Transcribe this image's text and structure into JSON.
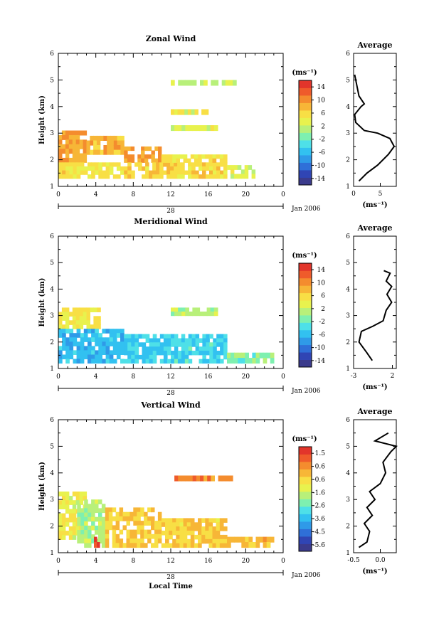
{
  "palette": [
    "#3b3b8c",
    "#3045b4",
    "#2f6fd8",
    "#2f9ae8",
    "#32c1f0",
    "#4ee0e8",
    "#7ef0b0",
    "#b8f07a",
    "#e8f24e",
    "#f8df45",
    "#f7b637",
    "#f48c2e",
    "#ef5b2b",
    "#e2352b"
  ],
  "date_label": "Jan 2006",
  "day_label": "28",
  "xlabel": "Local Time",
  "ylabel": "Height (km)",
  "unit_label": "(ms⁻¹)",
  "chart_data": [
    {
      "id": "zonal",
      "type": "heatmap",
      "title": "Zonal Wind",
      "xlabel": "",
      "ylabel": "Height (km)",
      "x_ticks": [
        "0",
        "4",
        "8",
        "12",
        "16",
        "20",
        "0"
      ],
      "xlim": [
        0,
        24
      ],
      "ylim": [
        1,
        6
      ],
      "y_ticks": [
        "1",
        "2",
        "3",
        "4",
        "5",
        "6"
      ],
      "colorbar_ticks": [
        "14",
        "10",
        "6",
        "2",
        "-2",
        "-6",
        "-10",
        "-14"
      ],
      "colorbar_range": [
        -16,
        16
      ],
      "approx_cells": [
        {
          "x0": 0,
          "x1": 3,
          "y0": 1.9,
          "y1": 3.1,
          "v": 9
        },
        {
          "x0": 3,
          "x1": 7,
          "y0": 2.2,
          "y1": 2.9,
          "v": 8
        },
        {
          "x0": 7,
          "x1": 11,
          "y0": 1.9,
          "y1": 2.5,
          "v": 9
        },
        {
          "x0": 0,
          "x1": 7,
          "y0": 1.3,
          "y1": 1.9,
          "v": 5
        },
        {
          "x0": 7,
          "x1": 18,
          "y0": 1.3,
          "y1": 1.9,
          "v": 6
        },
        {
          "x0": 11,
          "x1": 18,
          "y0": 1.9,
          "y1": 2.2,
          "v": 5
        },
        {
          "x0": 18,
          "x1": 21,
          "y0": 1.3,
          "y1": 1.8,
          "v": 3
        },
        {
          "x0": 12,
          "x1": 17,
          "y0": 3.1,
          "y1": 3.3,
          "v": 3
        },
        {
          "x0": 12,
          "x1": 16,
          "y0": 3.7,
          "y1": 3.9,
          "v": 4
        },
        {
          "x0": 12,
          "x1": 19,
          "y0": 4.8,
          "y1": 5.0,
          "v": 2
        }
      ],
      "average": {
        "title": "Average",
        "xlim": [
          0,
          8
        ],
        "x_ticks": [
          "0",
          "5"
        ],
        "xlabel": "(ms⁻¹)",
        "points": [
          [
            1.0,
            1.2
          ],
          [
            2.5,
            1.5
          ],
          [
            4.5,
            1.8
          ],
          [
            6.5,
            2.2
          ],
          [
            7.6,
            2.5
          ],
          [
            6.8,
            2.8
          ],
          [
            4.5,
            3.0
          ],
          [
            2.0,
            3.1
          ],
          [
            0.4,
            3.4
          ],
          [
            0.2,
            3.7
          ],
          [
            1.4,
            4.0
          ],
          [
            2.0,
            4.1
          ],
          [
            1.0,
            4.4
          ],
          [
            0.6,
            4.8
          ],
          [
            0.2,
            5.2
          ]
        ]
      }
    },
    {
      "id": "meridional",
      "type": "heatmap",
      "title": "Meridional Wind",
      "xlabel": "",
      "ylabel": "Height (km)",
      "x_ticks": [
        "0",
        "4",
        "8",
        "12",
        "16",
        "20",
        "0"
      ],
      "xlim": [
        0,
        24
      ],
      "ylim": [
        1,
        6
      ],
      "y_ticks": [
        "1",
        "2",
        "3",
        "4",
        "5",
        "6"
      ],
      "colorbar_ticks": [
        "14",
        "10",
        "6",
        "2",
        "-2",
        "-6",
        "-10",
        "-14"
      ],
      "colorbar_range": [
        -16,
        16
      ],
      "approx_cells": [
        {
          "x0": 0,
          "x1": 4.5,
          "y0": 2.5,
          "y1": 3.3,
          "v": 5
        },
        {
          "x0": 0,
          "x1": 7,
          "y0": 1.2,
          "y1": 2.5,
          "v": -6
        },
        {
          "x0": 7,
          "x1": 12,
          "y0": 1.2,
          "y1": 2.3,
          "v": -5
        },
        {
          "x0": 12,
          "x1": 18,
          "y0": 1.2,
          "y1": 2.3,
          "v": -4
        },
        {
          "x0": 18,
          "x1": 23,
          "y0": 1.2,
          "y1": 1.6,
          "v": -1
        },
        {
          "x0": 12,
          "x1": 17,
          "y0": 3.0,
          "y1": 3.3,
          "v": 1
        }
      ],
      "average": {
        "title": "Average",
        "xlim": [
          -3,
          2.5
        ],
        "x_ticks": [
          "-3",
          "2"
        ],
        "xlabel": "(ms⁻¹)",
        "points": [
          [
            -0.6,
            1.3
          ],
          [
            -1.3,
            1.6
          ],
          [
            -2.3,
            2.0
          ],
          [
            -2.0,
            2.4
          ],
          [
            -0.5,
            2.6
          ],
          [
            0.8,
            2.8
          ],
          [
            1.2,
            3.2
          ],
          [
            1.9,
            3.5
          ],
          [
            1.3,
            3.8
          ],
          [
            1.9,
            4.1
          ],
          [
            1.2,
            4.3
          ],
          [
            1.7,
            4.6
          ],
          [
            0.9,
            4.7
          ]
        ]
      }
    },
    {
      "id": "vertical",
      "type": "heatmap",
      "title": "Vertical Wind",
      "xlabel": "Local Time",
      "ylabel": "Height (km)",
      "x_ticks": [
        "0",
        "4",
        "8",
        "12",
        "16",
        "20",
        "0"
      ],
      "xlim": [
        0,
        24
      ],
      "ylim": [
        1,
        6
      ],
      "y_ticks": [
        "1",
        "2",
        "3",
        "4",
        "5",
        "6"
      ],
      "colorbar_ticks": [
        "1.5",
        "0.6",
        "-0.6",
        "-1.6",
        "-2.6",
        "-3.6",
        "-4.5",
        "-5.6"
      ],
      "colorbar_range": [
        -6,
        2
      ],
      "approx_cells": [
        {
          "x0": 0,
          "x1": 3,
          "y0": 1.5,
          "y1": 3.3,
          "v": -1.0
        },
        {
          "x0": 2,
          "x1": 5,
          "y0": 1.2,
          "y1": 3.0,
          "v": -1.8
        },
        {
          "x0": 5,
          "x1": 11,
          "y0": 1.2,
          "y1": 2.7,
          "v": -0.3
        },
        {
          "x0": 11,
          "x1": 18,
          "y0": 1.2,
          "y1": 2.3,
          "v": -0.4
        },
        {
          "x0": 3.8,
          "x1": 4.4,
          "y0": 1.2,
          "y1": 1.6,
          "v": 1.6
        },
        {
          "x0": 18,
          "x1": 23,
          "y0": 1.2,
          "y1": 1.6,
          "v": 0.0
        },
        {
          "x0": 12,
          "x1": 19,
          "y0": 3.7,
          "y1": 3.9,
          "v": 0.6
        }
      ],
      "average": {
        "title": "Average",
        "xlim": [
          -0.5,
          0.3
        ],
        "x_ticks": [
          "-0.5",
          "0.0"
        ],
        "xlabel": "(ms⁻¹)",
        "points": [
          [
            -0.4,
            1.2
          ],
          [
            -0.25,
            1.4
          ],
          [
            -0.2,
            1.8
          ],
          [
            -0.3,
            2.1
          ],
          [
            -0.15,
            2.4
          ],
          [
            -0.25,
            2.7
          ],
          [
            -0.1,
            3.0
          ],
          [
            -0.2,
            3.3
          ],
          [
            0.0,
            3.6
          ],
          [
            0.1,
            4.0
          ],
          [
            0.05,
            4.4
          ],
          [
            0.2,
            4.8
          ],
          [
            0.3,
            5.0
          ],
          [
            -0.1,
            5.2
          ],
          [
            0.15,
            5.5
          ]
        ]
      }
    }
  ]
}
